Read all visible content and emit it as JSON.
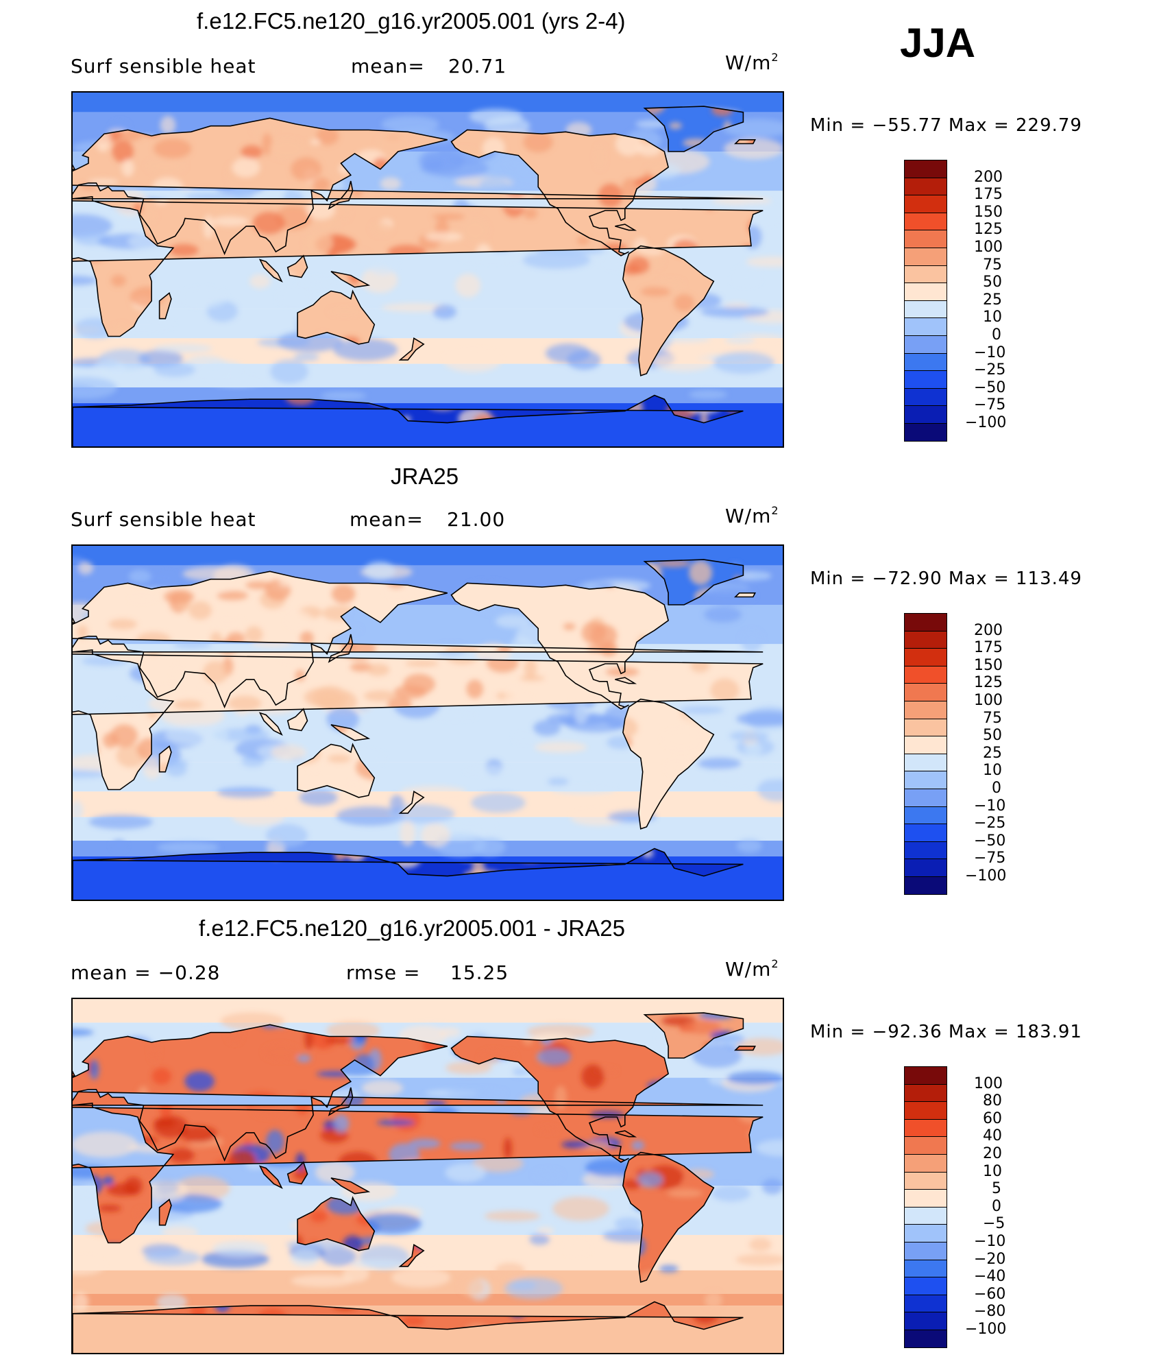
{
  "season": "JJA",
  "units_base": "W/m",
  "units_exp": "2",
  "colors": {
    "abs": [
      "#0a0a78",
      "#0a1eb4",
      "#0f32d2",
      "#1e50f0",
      "#3c78f0",
      "#78a0f5",
      "#a0c3fa",
      "#d2e6fa",
      "#ffe6d2",
      "#fac3a0",
      "#f5a078",
      "#f07850",
      "#f0502a",
      "#d22f0f",
      "#b41e0a",
      "#780a0a"
    ],
    "diff": [
      "#0a0a78",
      "#0a1eb4",
      "#0f32d2",
      "#1e50f0",
      "#3c78f0",
      "#78a0f5",
      "#a0c3fa",
      "#d2e6fa",
      "#ffe6d2",
      "#fac3a0",
      "#f5a078",
      "#f07850",
      "#f0502a",
      "#d22f0f",
      "#b41e0a",
      "#780a0a"
    ]
  },
  "panels": [
    {
      "title": "f.e12.FC5.ne120_g16.yr2005.001 (yrs 2-4)",
      "left_label": "Surf  sensible  heat",
      "stat_label": "mean=",
      "stat_value": "20.71",
      "min_label": "Min  =  −55.77  Max  =  229.79",
      "ticks": [
        "200",
        "175",
        "150",
        "125",
        "100",
        "75",
        "50",
        "25",
        "10",
        "0",
        "−10",
        "−25",
        "−50",
        "−75",
        "−100"
      ],
      "palette": "abs"
    },
    {
      "title": "JRA25",
      "left_label": "Surf  sensible  heat",
      "stat_label": "mean=",
      "stat_value": "21.00",
      "min_label": "Min  =  −72.90  Max  =  113.49",
      "ticks": [
        "200",
        "175",
        "150",
        "125",
        "100",
        "75",
        "50",
        "25",
        "10",
        "0",
        "−10",
        "−25",
        "−50",
        "−75",
        "−100"
      ],
      "palette": "abs"
    },
    {
      "title": "f.e12.FC5.ne120_g16.yr2005.001 - JRA25",
      "left_label": "mean  =     −0.28",
      "stat_label": "rmse  =",
      "stat_value": "15.25",
      "min_label": "Min  =  −92.36  Max  =  183.91",
      "ticks": [
        "100",
        "80",
        "60",
        "40",
        "20",
        "10",
        "5",
        "0",
        "−5",
        "−10",
        "−20",
        "−40",
        "−60",
        "−80",
        "−100"
      ],
      "palette": "diff"
    }
  ]
}
